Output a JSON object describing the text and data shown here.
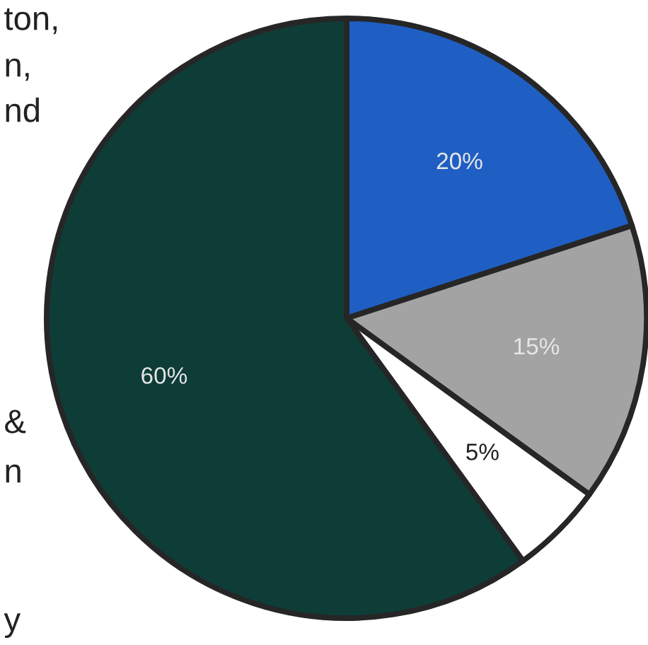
{
  "chart_data": {
    "type": "pie",
    "categories": [
      null,
      null,
      null,
      null
    ],
    "values": [
      20,
      15,
      5,
      60
    ],
    "colors": [
      "#1f5fc4",
      "#a3a3a3",
      "#ffffff",
      "#0e3d38"
    ],
    "value_labels": [
      "20%",
      "15%",
      "5%",
      "60%"
    ],
    "annotations": [
      "ton,",
      "n,",
      "nd",
      "&",
      "n",
      "y"
    ]
  }
}
